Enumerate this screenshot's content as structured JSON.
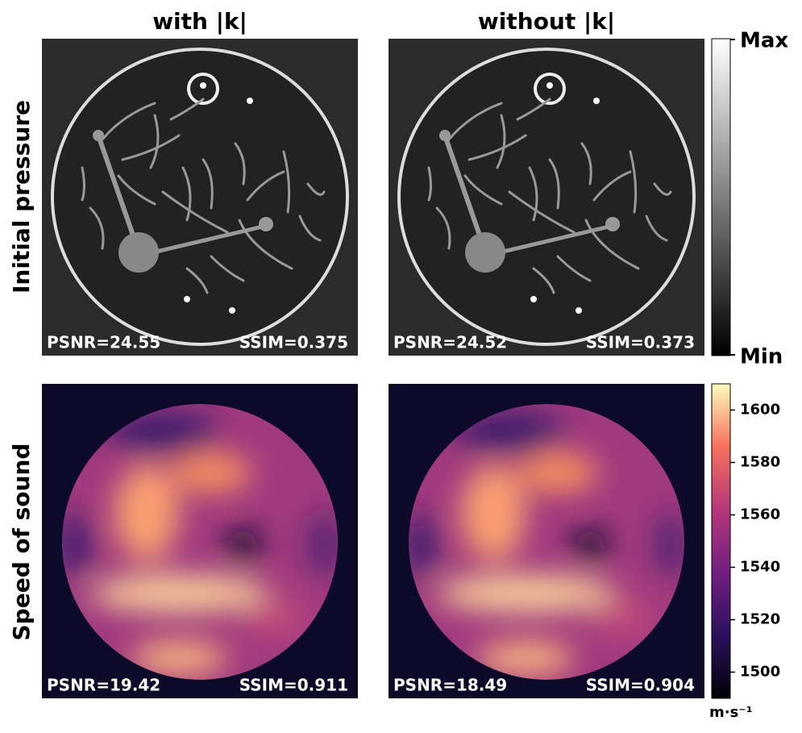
{
  "columns": [
    "with |k|",
    "without |k|"
  ],
  "rows": [
    "Initial pressure",
    "Speed of sound"
  ],
  "panels": [
    [
      {
        "psnr": "PSNR=24.55",
        "ssim": "SSIM=0.375"
      },
      {
        "psnr": "PSNR=24.52",
        "ssim": "SSIM=0.373"
      }
    ],
    [
      {
        "psnr": "PSNR=19.42",
        "ssim": "SSIM=0.911"
      },
      {
        "psnr": "PSNR=18.49",
        "ssim": "SSIM=0.904"
      }
    ]
  ],
  "pressure_colorbar": {
    "max": "Max",
    "min": "Min"
  },
  "sound_colorbar": {
    "lim": [
      1490,
      1610
    ],
    "ticks": [
      1500,
      1520,
      1540,
      1560,
      1580,
      1600
    ],
    "unit": "m·s⁻¹"
  }
}
